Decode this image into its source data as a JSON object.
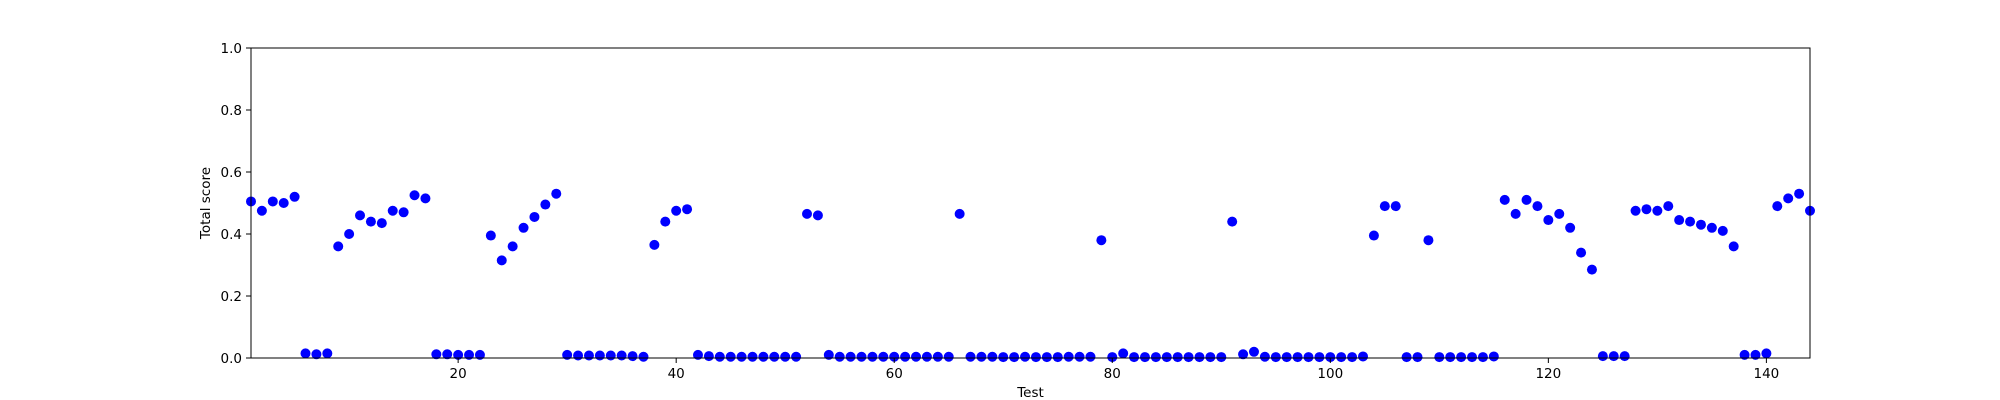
{
  "chart_data": {
    "type": "scatter",
    "xlabel": "Test",
    "ylabel": "Total score",
    "xlim": [
      1,
      144
    ],
    "ylim": [
      0,
      1.0
    ],
    "x_ticks": [
      20,
      40,
      60,
      80,
      100,
      120,
      140
    ],
    "x_tick_labels": [
      "20",
      "40",
      "60",
      "80",
      "100",
      "120",
      "140"
    ],
    "y_ticks": [
      0,
      0.2,
      0.4,
      0.6,
      0.8,
      1.0
    ],
    "y_tick_labels": [
      "0.0",
      "0.2",
      "0.4",
      "0.6",
      "0.8",
      "1.0"
    ],
    "grid": false,
    "marker_color": "#0000ff",
    "x": [
      1,
      2,
      3,
      4,
      5,
      6,
      7,
      8,
      9,
      10,
      11,
      12,
      13,
      14,
      15,
      16,
      17,
      18,
      19,
      20,
      21,
      22,
      23,
      24,
      25,
      26,
      27,
      28,
      29,
      30,
      31,
      32,
      33,
      34,
      35,
      36,
      37,
      38,
      39,
      40,
      41,
      42,
      43,
      44,
      45,
      46,
      47,
      48,
      49,
      50,
      51,
      52,
      53,
      54,
      55,
      56,
      57,
      58,
      59,
      60,
      61,
      62,
      63,
      64,
      65,
      66,
      67,
      68,
      69,
      70,
      71,
      72,
      73,
      74,
      75,
      76,
      77,
      78,
      79,
      80,
      81,
      82,
      83,
      84,
      85,
      86,
      87,
      88,
      89,
      90,
      91,
      92,
      93,
      94,
      95,
      96,
      97,
      98,
      99,
      100,
      101,
      102,
      103,
      104,
      105,
      106,
      107,
      108,
      109,
      110,
      111,
      112,
      113,
      114,
      115,
      116,
      117,
      118,
      119,
      120,
      121,
      122,
      123,
      124,
      125,
      126,
      127,
      128,
      129,
      130,
      131,
      132,
      133,
      134,
      135,
      136,
      137,
      138,
      139,
      140,
      141,
      142,
      143,
      144
    ],
    "y": [
      0.505,
      0.475,
      0.505,
      0.5,
      0.52,
      0.015,
      0.012,
      0.015,
      0.36,
      0.4,
      0.46,
      0.44,
      0.435,
      0.475,
      0.47,
      0.525,
      0.515,
      0.012,
      0.012,
      0.01,
      0.01,
      0.01,
      0.395,
      0.315,
      0.36,
      0.42,
      0.455,
      0.495,
      0.53,
      0.01,
      0.008,
      0.008,
      0.008,
      0.008,
      0.008,
      0.006,
      0.004,
      0.365,
      0.44,
      0.475,
      0.48,
      0.01,
      0.006,
      0.004,
      0.004,
      0.004,
      0.004,
      0.004,
      0.004,
      0.004,
      0.004,
      0.465,
      0.46,
      0.01,
      0.004,
      0.004,
      0.004,
      0.004,
      0.004,
      0.004,
      0.004,
      0.004,
      0.004,
      0.004,
      0.004,
      0.465,
      0.004,
      0.004,
      0.004,
      0.003,
      0.003,
      0.004,
      0.003,
      0.003,
      0.003,
      0.004,
      0.004,
      0.004,
      0.38,
      0.003,
      0.015,
      0.003,
      0.003,
      0.003,
      0.003,
      0.003,
      0.003,
      0.003,
      0.003,
      0.003,
      0.44,
      0.012,
      0.02,
      0.004,
      0.003,
      0.003,
      0.003,
      0.003,
      0.003,
      0.003,
      0.003,
      0.003,
      0.005,
      0.395,
      0.49,
      0.49,
      0.003,
      0.003,
      0.38,
      0.003,
      0.003,
      0.003,
      0.003,
      0.003,
      0.005,
      0.51,
      0.465,
      0.51,
      0.49,
      0.445,
      0.465,
      0.42,
      0.34,
      0.285,
      0.006,
      0.006,
      0.006,
      0.475,
      0.48,
      0.475,
      0.49,
      0.445,
      0.44,
      0.43,
      0.42,
      0.41,
      0.36,
      0.01,
      0.01,
      0.015,
      0.49,
      0.515,
      0.53,
      0.475
    ]
  }
}
